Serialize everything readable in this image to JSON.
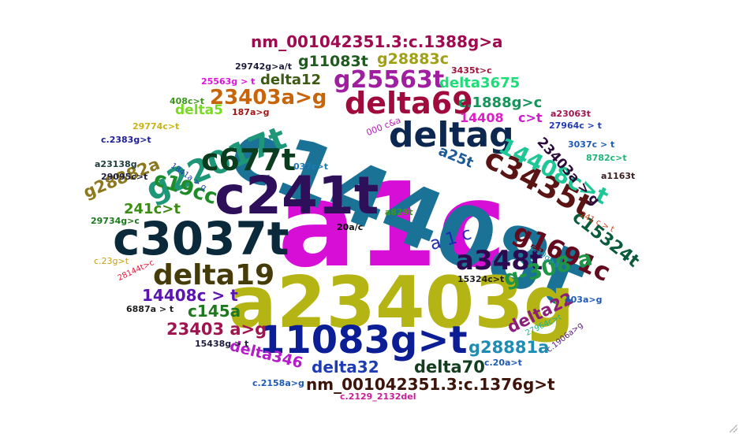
{
  "words": [
    {
      "text": "a1c",
      "color": "#d60ed6"
    },
    {
      "text": "c14408t",
      "color": "#1a7296"
    },
    {
      "text": "a23403g",
      "color": "#b4b414"
    },
    {
      "text": "c241t",
      "color": "#2d0f5a"
    },
    {
      "text": "c3037t",
      "color": "#0a2a3c"
    },
    {
      "text": "11083g>t",
      "color": "#0c1e96"
    },
    {
      "text": "deltag",
      "color": "#0c2850"
    },
    {
      "text": "delta69",
      "color": "#a00a3c"
    },
    {
      "text": "g22017t",
      "color": "#1e9678"
    },
    {
      "text": "c677t",
      "color": "#0a3c1e"
    },
    {
      "text": "c3435t",
      "color": "#5a1414"
    },
    {
      "text": "14408c>t",
      "color": "#1ec896"
    },
    {
      "text": "delta19",
      "color": "#463c0a"
    },
    {
      "text": "a348t",
      "color": "#2d0a50"
    },
    {
      "text": "g1691c",
      "color": "#640a1e"
    },
    {
      "text": "c15324t",
      "color": "#0a5a3c"
    },
    {
      "text": "g-308 a",
      "color": "#1e9646"
    },
    {
      "text": "g25563t",
      "color": "#a01ea0"
    },
    {
      "text": "23403a>g",
      "color": "#c8640a"
    },
    {
      "text": "c19cc",
      "color": "#1e8c28"
    },
    {
      "text": "nm_001042351.3:c.1388g>a",
      "color": "#a00a50"
    },
    {
      "text": "nm_001042351.3:c.1376g>t",
      "color": "#3c140a"
    },
    {
      "text": "g28882a",
      "color": "#8c781e"
    },
    {
      "text": "delta22",
      "color": "#8c1e78"
    },
    {
      "text": "g28881a",
      "color": "#1e8cb4"
    },
    {
      "text": "delta70",
      "color": "#143c1e"
    },
    {
      "text": "delta32",
      "color": "#1e3cb4"
    },
    {
      "text": "delta346",
      "color": "#b41ec8"
    },
    {
      "text": "23403 a>g",
      "color": "#a01450"
    },
    {
      "text": "14408c > t",
      "color": "#5a14b4"
    },
    {
      "text": "c145a",
      "color": "#1e781e"
    },
    {
      "text": "241c>t",
      "color": "#3c8c14"
    },
    {
      "text": "a 1 c",
      "color": "#1e28b4"
    },
    {
      "text": "a25t",
      "color": "#1e5a96"
    },
    {
      "text": "23403a > g",
      "color": "#2d0a3c"
    },
    {
      "text": "g11083t",
      "color": "#1e5a1e"
    },
    {
      "text": "g28883c",
      "color": "#a0a014"
    },
    {
      "text": "delta12",
      "color": "#3c5a14"
    },
    {
      "text": "delta3675",
      "color": "#1edc78"
    },
    {
      "text": "c.1888g>c",
      "color": "#14965a"
    },
    {
      "text": "14408",
      "color": "#dc1ec8"
    },
    {
      "text": "c>t",
      "color": "#c81ec8"
    },
    {
      "text": "delta5",
      "color": "#78dc1e"
    },
    {
      "text": "29742g>a/t",
      "color": "#1e1e3c"
    },
    {
      "text": "3435t>c",
      "color": "#a0143c"
    },
    {
      "text": "25563g > t",
      "color": "#dc14dc"
    },
    {
      "text": "408c>t",
      "color": "#3c961e"
    },
    {
      "text": "187a>g",
      "color": "#a01414"
    },
    {
      "text": "a23063t",
      "color": "#a01450"
    },
    {
      "text": "29774c>t",
      "color": "#c8b414"
    },
    {
      "text": "000 c&a",
      "color": "#b41eb4"
    },
    {
      "text": "27964c > t",
      "color": "#1e3cb4"
    },
    {
      "text": "c.2383g>t",
      "color": "#1e1e96"
    },
    {
      "text": "a23138g",
      "color": "#1e3c3c"
    },
    {
      "text": "1841a > g",
      "color": "#1e3cb4"
    },
    {
      "text": "037c>t",
      "color": "#1e78b4"
    },
    {
      "text": "3037c > t",
      "color": "#1e5ab4"
    },
    {
      "text": "8782c>t",
      "color": "#1eb478"
    },
    {
      "text": "a1163t",
      "color": "#3c1e1e"
    },
    {
      "text": "29095c>t",
      "color": "#1e1e3c"
    },
    {
      "text": "29734g>c",
      "color": "#1e781e"
    },
    {
      "text": "a829t",
      "color": "#3c961e"
    },
    {
      "text": "20a/c",
      "color": "#0a0a0a"
    },
    {
      "text": "241 c > t",
      "color": "#c83c14"
    },
    {
      "text": "c.19g>a",
      "color": "#1e96b4"
    },
    {
      "text": "15324c>t",
      "color": "#1e1e1e"
    },
    {
      "text": "403a>g",
      "color": "#1e5ab4"
    },
    {
      "text": "c.23g>t",
      "color": "#c8a014"
    },
    {
      "text": "28144t>c",
      "color": "#dc1e3c"
    },
    {
      "text": "6887a > t",
      "color": "#1e1e1e"
    },
    {
      "text": "27964c>t",
      "color": "#1eb48c"
    },
    {
      "text": "c.1906a>g",
      "color": "#5a1e78"
    },
    {
      "text": "15438g > t",
      "color": "#1e1e3c"
    },
    {
      "text": "c.20a>t",
      "color": "#1e5ab4"
    },
    {
      "text": "c.2158a>g",
      "color": "#1e5ab4"
    },
    {
      "text": "c.2129_2132del",
      "color": "#c81e96"
    }
  ]
}
